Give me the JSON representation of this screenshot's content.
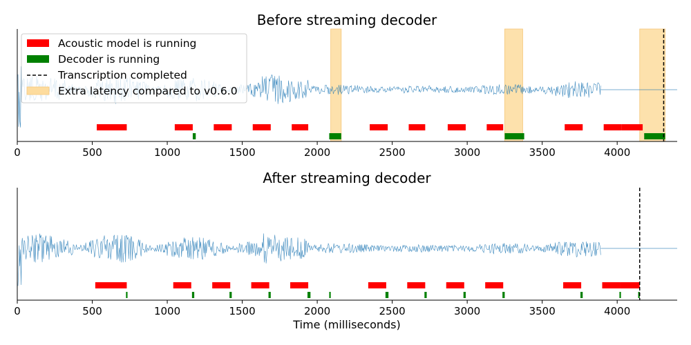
{
  "chart_data": [
    {
      "type": "timeline",
      "title": "Before streaming decoder",
      "xlim": [
        0,
        4400
      ],
      "xticks": [
        0,
        500,
        1000,
        1500,
        2000,
        2500,
        3000,
        3500,
        4000
      ],
      "xlabel": "",
      "legend": {
        "placement": "top-left",
        "entries": [
          {
            "label": "Acoustic model is running",
            "kind": "bar",
            "color": "#ff0000"
          },
          {
            "label": "Decoder is running",
            "kind": "bar",
            "color": "#008000"
          },
          {
            "label": "Transcription completed",
            "kind": "dashed-line",
            "color": "#000000"
          },
          {
            "label": "Extra latency compared to v0.6.0",
            "kind": "patch",
            "color": "#fddc9e"
          }
        ]
      },
      "acoustic_model_running": [
        [
          530,
          730
        ],
        [
          1050,
          1170
        ],
        [
          1310,
          1430
        ],
        [
          1570,
          1690
        ],
        [
          1830,
          1940
        ],
        [
          2350,
          2470
        ],
        [
          2610,
          2720
        ],
        [
          2870,
          2990
        ],
        [
          3130,
          3240
        ],
        [
          3650,
          3770
        ],
        [
          3910,
          4030
        ],
        [
          4030,
          4170
        ]
      ],
      "decoder_running": [
        [
          1170,
          1190
        ],
        [
          2080,
          2160
        ],
        [
          3250,
          3380
        ],
        [
          4180,
          4320
        ]
      ],
      "extra_latency": [
        [
          2090,
          2160
        ],
        [
          3250,
          3370
        ],
        [
          4150,
          4320
        ]
      ],
      "transcription_completed": 4310,
      "waveform_end": 3890
    },
    {
      "type": "timeline",
      "title": "After streaming decoder",
      "xlim": [
        0,
        4400
      ],
      "xticks": [
        0,
        500,
        1000,
        1500,
        2000,
        2500,
        3000,
        3500,
        4000
      ],
      "xlabel": "Time (milliseconds)",
      "acoustic_model_running": [
        [
          520,
          730
        ],
        [
          1040,
          1160
        ],
        [
          1300,
          1420
        ],
        [
          1560,
          1680
        ],
        [
          1820,
          1940
        ],
        [
          2340,
          2460
        ],
        [
          2600,
          2720
        ],
        [
          2860,
          2980
        ],
        [
          3120,
          3240
        ],
        [
          3640,
          3760
        ],
        [
          3900,
          4020
        ],
        [
          4020,
          4150
        ]
      ],
      "decoder_running": [
        [
          725,
          735
        ],
        [
          1165,
          1180
        ],
        [
          1415,
          1430
        ],
        [
          1675,
          1690
        ],
        [
          1935,
          1955
        ],
        [
          2080,
          2090
        ],
        [
          2455,
          2475
        ],
        [
          2715,
          2730
        ],
        [
          2975,
          2990
        ],
        [
          3235,
          3250
        ],
        [
          3755,
          3770
        ],
        [
          4015,
          4025
        ],
        [
          4140,
          4150
        ]
      ],
      "transcription_completed": 4150,
      "waveform_end": 3890
    }
  ],
  "colors": {
    "acoustic": "#ff0000",
    "decoder": "#008000",
    "latency": "#fddc9e",
    "waveform": "#1f77b4"
  }
}
